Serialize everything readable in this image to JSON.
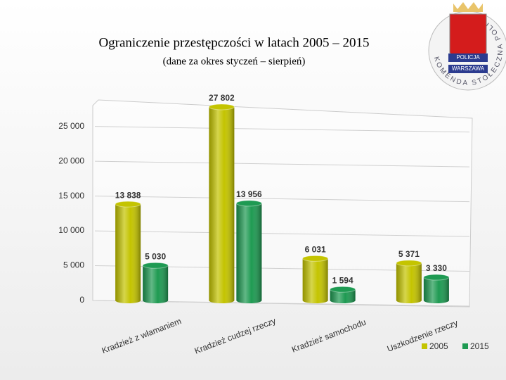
{
  "chart_data": {
    "type": "bar",
    "title": "Ograniczenie przestępczości w latach 2005 – 2015",
    "subtitle": "(dane za okres styczeń – sierpień)",
    "logo": {
      "ring": "KOMENDA STOŁECZNA POLICJI",
      "badge_top": "POLICJA",
      "badge_bottom": "WARSZAWA"
    },
    "categories": [
      "Kradzież z włamaniem",
      "Kradzież cudzej rzeczy",
      "Kradzież samochodu",
      "Uszkodzenie rzeczy"
    ],
    "series": [
      {
        "name": "2005",
        "color": "#c4c400",
        "values": [
          13838,
          27802,
          6031,
          5371
        ],
        "value_labels": [
          "13 838",
          "27 802",
          "6 031",
          "5 371"
        ]
      },
      {
        "name": "2015",
        "color": "#1e9a52",
        "values": [
          5030,
          13956,
          1594,
          3330
        ],
        "value_labels": [
          "5 030",
          "13 956",
          "1 594",
          "3 330"
        ]
      }
    ],
    "ylim": [
      0,
      28000
    ],
    "yticks": [
      0,
      {
        "value": 5000,
        "label": "5 000"
      },
      {
        "value": 10000,
        "label": "10 000"
      },
      {
        "value": 15000,
        "label": "15 000"
      },
      {
        "value": 20000,
        "label": "20 000"
      },
      {
        "value": 25000,
        "label": "25 000"
      }
    ],
    "grid": true,
    "legend": "bottom-right"
  }
}
